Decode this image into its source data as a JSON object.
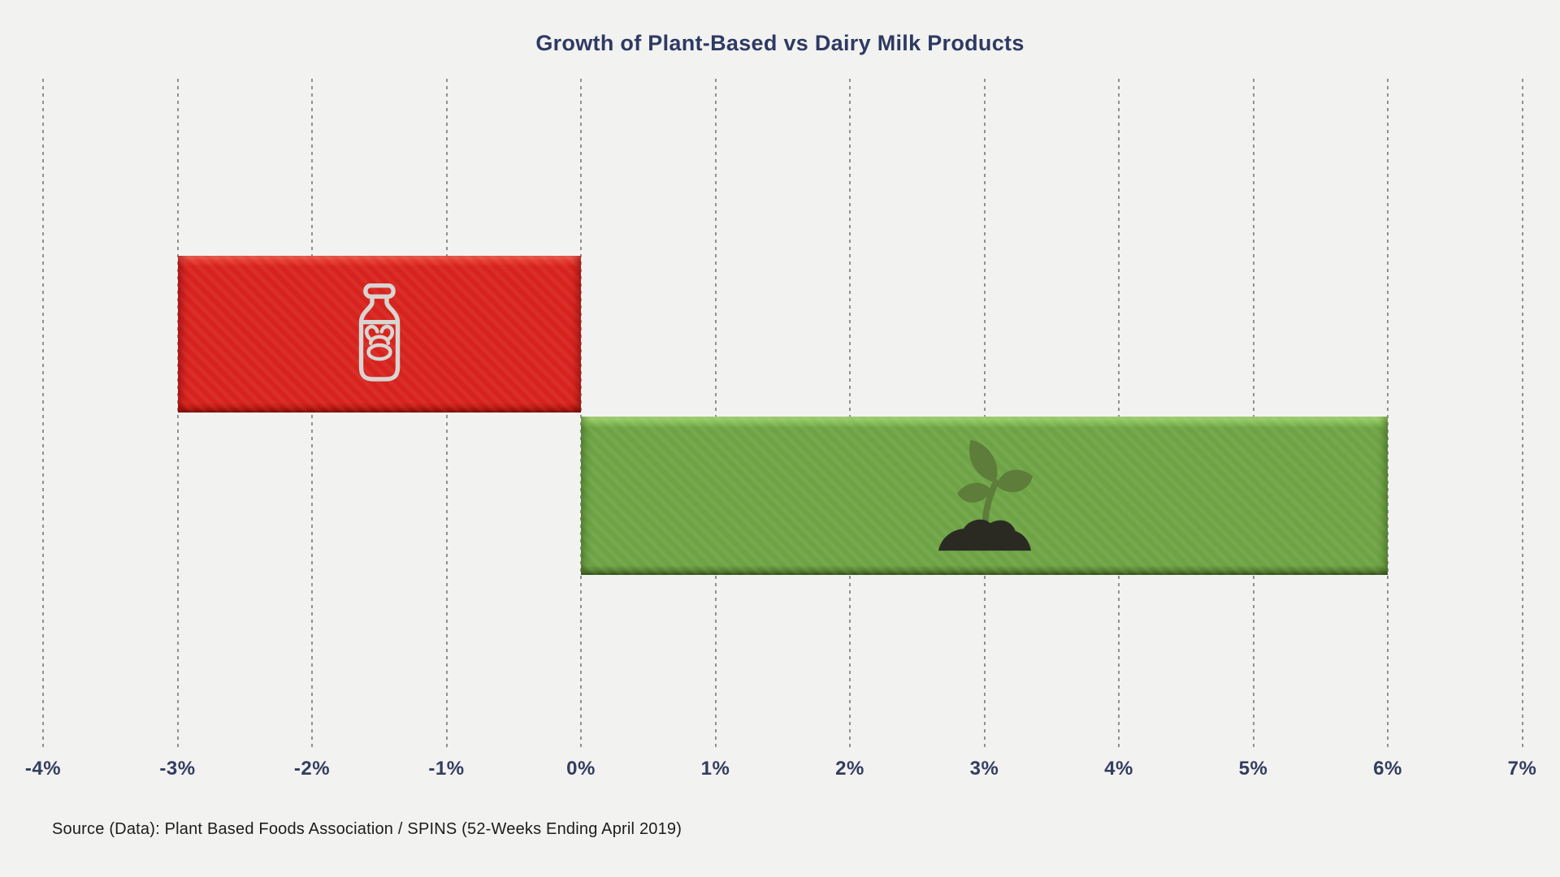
{
  "page": {
    "background_color": "#f2f2f1"
  },
  "chart_data": {
    "type": "bar",
    "orientation": "horizontal",
    "title": "Growth of Plant-Based vs Dairy Milk Products",
    "source": "Source (Data): Plant Based Foods Association / SPINS (52-Weeks Ending April 2019)",
    "xlabel": "",
    "ylabel": "",
    "xlim": [
      -4,
      7
    ],
    "x_tick_step": 1,
    "x_ticks": [
      "-4%",
      "-3%",
      "-2%",
      "-1%",
      "0%",
      "1%",
      "2%",
      "3%",
      "4%",
      "5%",
      "6%",
      "7%"
    ],
    "grid": "vertical-dashed-lines",
    "legend": "none",
    "categories": [
      "Dairy Milk",
      "Plant-Based Milk"
    ],
    "values": [
      -3,
      6
    ],
    "series": [
      {
        "name": "Dairy Milk",
        "value": -3,
        "unit": "%",
        "color": "#d7231d",
        "icon": "milk-bottle-cow-icon"
      },
      {
        "name": "Plant-Based Milk",
        "value": 6,
        "unit": "%",
        "color": "#6da344",
        "icon": "sprout-icon"
      }
    ],
    "colors": {
      "title_text": "#2e3a62",
      "tick_label_text": "#333d5e",
      "gridline": "#827e84",
      "source_text": "#1c1c1a",
      "dairy_bar": "#d7231d",
      "plant_bar": "#6da344",
      "bottle_icon_stroke": "#d8d5d2",
      "leaf_fill": "#5e7c3a",
      "soil_fill": "#2a2a23"
    }
  }
}
